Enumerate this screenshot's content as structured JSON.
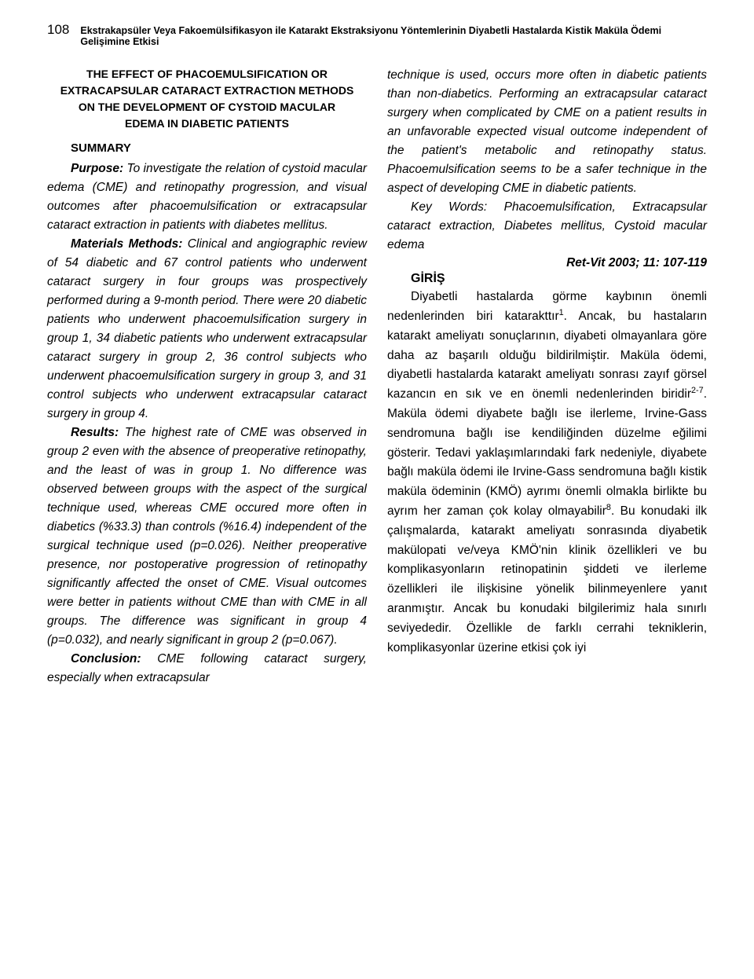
{
  "page_number": "108",
  "running_title": "Ekstrakapsüler Veya Fakoemülsifikasyon ile Katarakt Ekstraksiyonu Yöntemlerinin Diyabetli Hastalarda Kistik Maküla Ödemi Gelişimine Etkisi",
  "english_title_line1": "THE EFFECT OF PHACOEMULSIFICATION OR",
  "english_title_line2": "EXTRACAPSULAR CATARACT EXTRACTION METHODS",
  "english_title_line3": "ON THE DEVELOPMENT OF CYSTOID MACULAR",
  "english_title_line4": "EDEMA IN DIABETIC PATIENTS",
  "summary_label": "SUMMARY",
  "purpose_label": "Purpose:",
  "purpose_text": " To investigate the relation of cystoid macular edema (CME) and retinopathy progression, and visual outcomes after phacoemulsification or extracapsular cataract extraction in patients with diabetes mellitus.",
  "materials_label": "Materials Methods:",
  "materials_text": " Clinical and angiog­raphic review of 54 diabetic and 67 control patients who underwent cataract surgery in four groups was prospectively performed during a 9-month period. There were 20 diabetic patients who underwent phacoemulsi­fication surgery in group 1, 34 diabetic patients who underwent extracapsular cataract surgery in group 2, 36 control subjects who underwent phacoemulsification surgery in group 3, and 31 control subjects who underwent extracapsular cataract surgery in group 4.",
  "results_label": "Results:",
  "results_text": " The highest rate of CME was observed in group 2 even with the absence of preoperative retinopathy, and the least of was in group 1. No difference was observed between groups with the aspect of the surgical technique used, whereas CME occured more often in diabetics (%33.3) than controls (%16.4) independent of the surgical technique used (p=0.026). Neither preoperative presence, nor postoperative progression of retinopathy significantly affected the onset of CME. Visual outcomes were better in patients without CME than with CME in all groups. The difference was significant in group 4 (p=0.032), and nearly significant in group 2 (p=0.067).",
  "conclusion_label": "Conclusion:",
  "conclusion_text_left": " CME following cataract surgery, especially when extracapsular",
  "conclusion_text_right": "technique is used, occurs more often in diabetic patients than non-diabetics. Performing an extracapsular cataract surgery when complicated by CME on a patient results in an unfavorable expected visual outcome independent of the patient's metabolic and retinopathy status. Phacoemulsification seems to be a safer technique in the aspect of developing CME in diabetic patients.",
  "keywords_label": "Key Words:",
  "keywords_text": " Phacoemulsification, Extracapsular cataract extraction, Diabetes mellitus, Cystoid macular edema",
  "journal_ref": "Ret-Vit 2003; 11: 107-119",
  "intro_heading": "GİRİŞ",
  "intro_prefix": "Diyabetli hastalarda görme kaybının önemli nedenlerinden biri katarakttır",
  "intro_sup1": "1",
  "intro_mid1": ". Ancak, bu hastaların katarakt ameliyatı sonuçlarının, diyabeti olmayanlara göre daha az başarılı olduğu bildirilmiştir. Maküla ödemi, diyabetli hastalarda katarakt ameliyatı sonrası zayıf görsel kazancın en sık ve en önemli nedenlerinden biridir",
  "intro_sup2": "2-7",
  "intro_mid2": ". Maküla ödemi diyabete bağlı ise ilerleme, Irvine-Gass sendromuna bağlı ise kendiliğinden düzelme eğilimi gösterir. Tedavi yaklaşımlarındaki fark nedeniyle, diyabete bağlı maküla ödemi ile Irvine-Gass sendromuna bağlı kistik maküla ödeminin (KMÖ) ayrımı önemli olmakla birlikte bu ayrım her zaman çok kolay olmayabilir",
  "intro_sup3": "8",
  "intro_suffix": ". Bu konudaki ilk çalışmalarda, katarakt ameliyatı sonrasında diyabetik makülopati ve/veya KMÖ'nin klinik özellikleri ve bu komplikasyonların retinopatinin şiddeti ve ilerleme özellikleri ile ilişkisine yönelik bilinmeyenlere yanıt aranmıştır. Ancak bu konudaki bilgilerimiz hala sınırlı seviyededir. Özellikle de farklı cerrahi tekniklerin, komplikasyonlar üzerine etkisi çok iyi"
}
